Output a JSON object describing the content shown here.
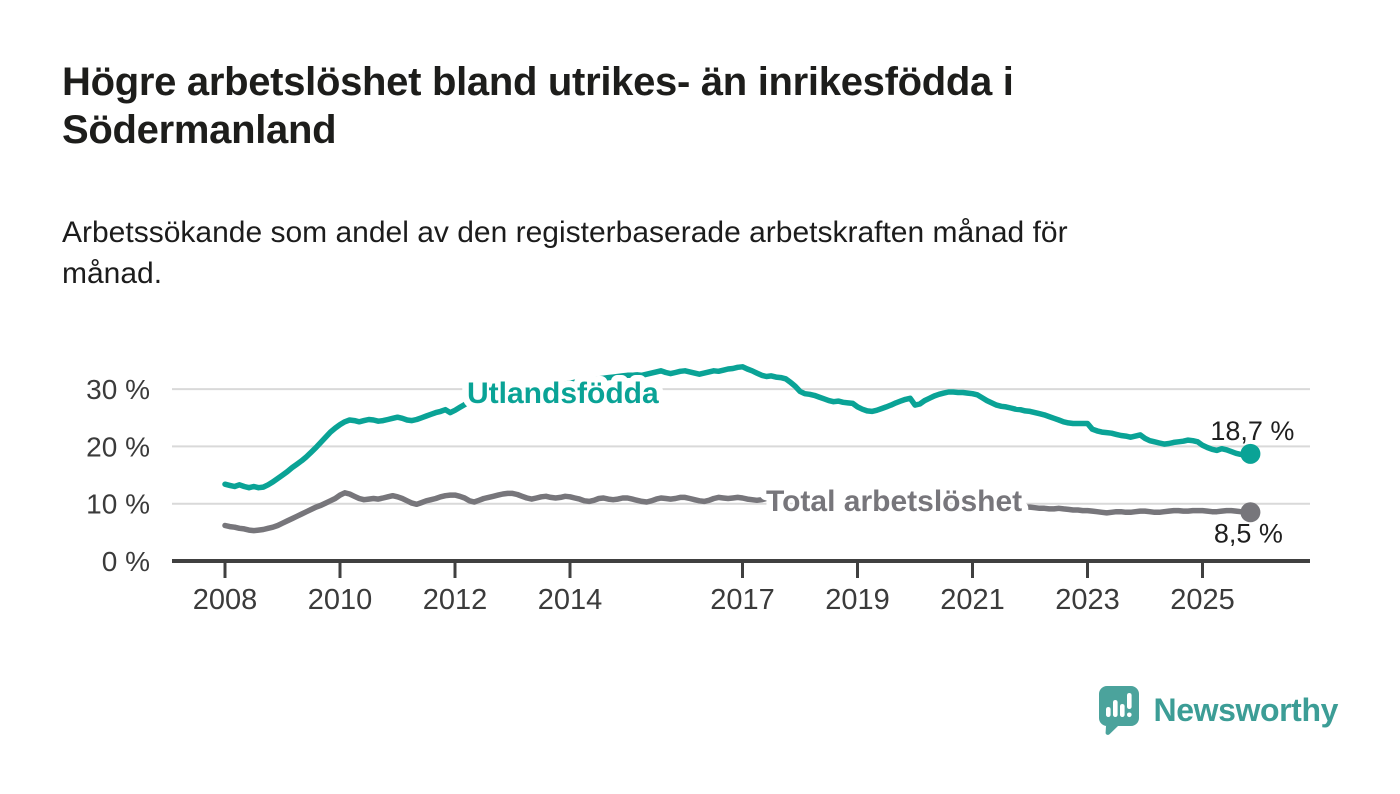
{
  "header": {
    "title_lines": [
      "Högre arbetslöshet bland utrikes- än inrikesfödda i",
      "Södermanland"
    ],
    "subtitle_lines": [
      "Arbetssökande som andel av den registerbaserade arbetskraften månad för",
      "månad."
    ]
  },
  "colors": {
    "accent_teal": "#0aa396",
    "line_gray": "#77767b",
    "logo_teal": "#4ba39c",
    "wordmark_teal": "#3c9d96",
    "axis_text": "#3b3b3b",
    "value_label_text": "#1f1f1f",
    "gridline": "#d9d9d9",
    "axis_line": "#404040"
  },
  "chart_data": {
    "type": "line",
    "frequency": "monthly",
    "x_range": {
      "start": "2008-01",
      "end": "2025-11"
    },
    "x_tick_years": [
      2008,
      2010,
      2012,
      2014,
      2017,
      2019,
      2021,
      2023,
      2025
    ],
    "x_tick_labels": [
      "2008",
      "2010",
      "2012",
      "2014",
      "2017",
      "2019",
      "2021",
      "2023",
      "2025"
    ],
    "y_ticks": [
      0,
      10,
      20,
      30
    ],
    "y_tick_labels": [
      "0 %",
      "10 %",
      "20 %",
      "30 %"
    ],
    "ylim": [
      0,
      35
    ],
    "grid": "horizontal",
    "series": [
      {
        "name": "Utlandsfödda",
        "color": "#0aa396",
        "end_value": 18.7,
        "end_label": "18,7 %",
        "values": [
          13.4,
          13.2,
          13.0,
          13.3,
          13.0,
          12.8,
          13.0,
          12.8,
          12.9,
          13.3,
          13.8,
          14.4,
          15.0,
          15.6,
          16.3,
          16.9,
          17.5,
          18.2,
          19.0,
          19.8,
          20.7,
          21.6,
          22.5,
          23.2,
          23.8,
          24.3,
          24.6,
          24.5,
          24.3,
          24.5,
          24.7,
          24.6,
          24.4,
          24.5,
          24.7,
          24.9,
          25.1,
          24.9,
          24.6,
          24.5,
          24.7,
          25.0,
          25.3,
          25.6,
          25.9,
          26.1,
          26.4,
          25.9,
          26.3,
          26.8,
          27.3,
          27.9,
          28.3,
          27.8,
          27.7,
          27.9,
          28.2,
          28.4,
          28.6,
          28.8,
          29.0,
          29.2,
          29.4,
          29.5,
          29.7,
          29.9,
          30.0,
          30.2,
          30.4,
          30.6,
          30.7,
          30.9,
          31.0,
          31.2,
          31.3,
          31.5,
          31.6,
          31.7,
          31.8,
          31.9,
          32.0,
          32.1,
          32.2,
          32.3,
          32.4,
          32.4,
          32.5,
          32.4,
          32.6,
          32.8,
          33.0,
          33.2,
          32.9,
          32.7,
          32.9,
          33.1,
          33.2,
          33.0,
          32.8,
          32.6,
          32.8,
          33.0,
          33.2,
          33.1,
          33.3,
          33.5,
          33.6,
          33.8,
          33.9,
          33.5,
          33.2,
          32.8,
          32.4,
          32.2,
          32.3,
          32.1,
          32.0,
          31.8,
          31.2,
          30.5,
          29.6,
          29.2,
          29.1,
          28.9,
          28.6,
          28.3,
          28.0,
          27.8,
          27.9,
          27.7,
          27.6,
          27.5,
          26.9,
          26.5,
          26.2,
          26.1,
          26.3,
          26.6,
          26.9,
          27.2,
          27.6,
          27.9,
          28.2,
          28.4,
          27.2,
          27.4,
          28.0,
          28.4,
          28.8,
          29.1,
          29.3,
          29.5,
          29.5,
          29.4,
          29.4,
          29.3,
          29.2,
          29.0,
          28.5,
          28.0,
          27.6,
          27.2,
          27.0,
          26.9,
          26.7,
          26.5,
          26.4,
          26.2,
          26.1,
          25.9,
          25.7,
          25.5,
          25.2,
          24.9,
          24.6,
          24.3,
          24.1,
          24.0,
          24.0,
          24.0,
          24.0,
          23.0,
          22.7,
          22.5,
          22.4,
          22.3,
          22.1,
          21.9,
          21.8,
          21.6,
          21.8,
          22.0,
          21.4,
          21.0,
          20.8,
          20.6,
          20.4,
          20.5,
          20.7,
          20.8,
          20.9,
          21.1,
          21.0,
          20.8,
          20.2,
          19.8,
          19.5,
          19.3,
          19.6,
          19.4,
          19.1,
          18.8,
          18.6,
          18.5,
          18.7
        ]
      },
      {
        "name": "Total arbetslöshet",
        "color": "#77767b",
        "end_value": 8.5,
        "end_label": "8,5 %",
        "values": [
          6.2,
          6.0,
          5.9,
          5.7,
          5.6,
          5.4,
          5.3,
          5.4,
          5.5,
          5.7,
          5.9,
          6.2,
          6.6,
          7.0,
          7.4,
          7.8,
          8.2,
          8.6,
          9.0,
          9.4,
          9.7,
          10.1,
          10.5,
          10.9,
          11.5,
          11.9,
          11.7,
          11.3,
          10.9,
          10.7,
          10.8,
          10.9,
          10.8,
          11.0,
          11.2,
          11.4,
          11.2,
          10.9,
          10.5,
          10.1,
          9.9,
          10.2,
          10.5,
          10.7,
          10.9,
          11.2,
          11.4,
          11.5,
          11.5,
          11.3,
          11.0,
          10.5,
          10.3,
          10.6,
          10.9,
          11.1,
          11.3,
          11.5,
          11.7,
          11.8,
          11.8,
          11.6,
          11.3,
          11.0,
          10.8,
          11.0,
          11.2,
          11.3,
          11.1,
          11.0,
          11.1,
          11.3,
          11.2,
          11.0,
          10.8,
          10.5,
          10.4,
          10.6,
          10.9,
          11.0,
          10.8,
          10.7,
          10.8,
          11.0,
          11.0,
          10.8,
          10.6,
          10.4,
          10.3,
          10.5,
          10.8,
          11.0,
          10.9,
          10.8,
          10.9,
          11.1,
          11.1,
          10.9,
          10.7,
          10.5,
          10.4,
          10.6,
          10.9,
          11.1,
          11.0,
          10.9,
          11.0,
          11.1,
          11.0,
          10.8,
          10.7,
          10.6,
          10.7,
          10.9,
          11.1,
          11.0,
          10.9,
          10.8,
          10.8,
          10.9,
          10.7,
          10.5,
          10.3,
          10.2,
          10.1,
          10.2,
          10.4,
          10.3,
          10.2,
          10.1,
          10.0,
          10.0,
          9.9,
          9.8,
          9.7,
          9.6,
          9.7,
          9.8,
          10.0,
          10.0,
          9.9,
          9.9,
          10.0,
          10.1,
          10.2,
          10.5,
          10.9,
          11.2,
          11.4,
          11.5,
          11.5,
          11.4,
          11.2,
          11.0,
          10.9,
          10.8,
          10.7,
          10.5,
          10.3,
          10.1,
          10.0,
          9.9,
          9.8,
          9.7,
          9.6,
          9.5,
          9.5,
          9.4,
          9.4,
          9.3,
          9.2,
          9.2,
          9.1,
          9.1,
          9.2,
          9.1,
          9.0,
          8.9,
          8.9,
          8.8,
          8.8,
          8.7,
          8.6,
          8.5,
          8.4,
          8.5,
          8.6,
          8.6,
          8.5,
          8.5,
          8.6,
          8.7,
          8.7,
          8.6,
          8.5,
          8.5,
          8.6,
          8.7,
          8.8,
          8.8,
          8.7,
          8.7,
          8.8,
          8.8,
          8.8,
          8.7,
          8.6,
          8.6,
          8.7,
          8.8,
          8.8,
          8.7,
          8.6,
          8.5,
          8.5
        ]
      }
    ]
  },
  "footer": {
    "brand": "Newsworthy"
  }
}
